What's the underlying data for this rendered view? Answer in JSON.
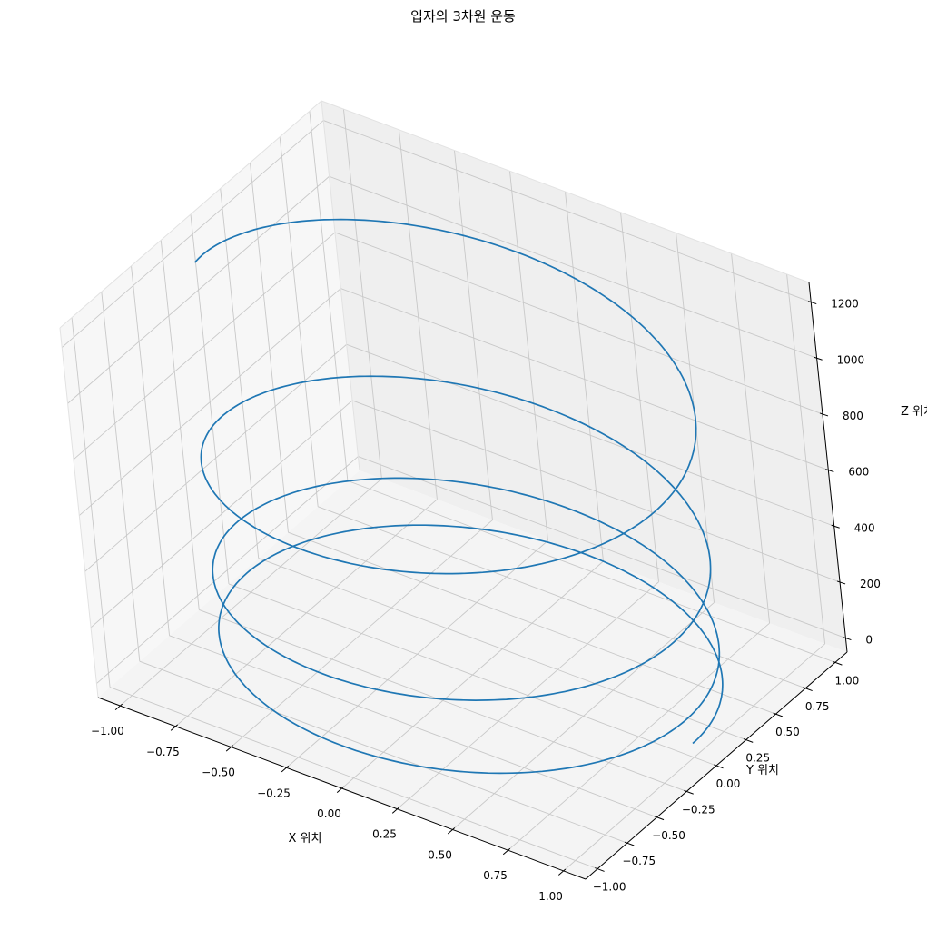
{
  "chart_data": {
    "type": "line",
    "projection": "3d",
    "title": "입자의 3차원 운동",
    "xlabel": "X 위치",
    "ylabel": "Y 위치",
    "zlabel": "Z 위치",
    "xlim": [
      -1.1,
      1.1
    ],
    "ylim": [
      -1.1,
      1.1
    ],
    "zlim": [
      -50,
      1270
    ],
    "xticks": [
      -1.0,
      -0.75,
      -0.5,
      -0.25,
      0.0,
      0.25,
      0.5,
      0.75,
      1.0
    ],
    "xtick_labels": [
      "−1.00",
      "−0.75",
      "−0.50",
      "−0.25",
      "0.00",
      "0.25",
      "0.50",
      "0.75",
      "1.00"
    ],
    "yticks": [
      -1.0,
      -0.75,
      -0.5,
      -0.25,
      0.0,
      0.25,
      0.5,
      0.75,
      1.0
    ],
    "ytick_labels": [
      "−1.00",
      "−0.75",
      "−0.50",
      "−0.25",
      "0.00",
      "0.25",
      "0.50",
      "0.75",
      "1.00"
    ],
    "zticks": [
      0,
      200,
      400,
      600,
      800,
      1000,
      1200
    ],
    "ztick_labels": [
      "0",
      "200",
      "400",
      "600",
      "800",
      "1000",
      "1200"
    ],
    "grid": true,
    "series": [
      {
        "color": "#1f77b4",
        "curve": "helix: x = cos(t), y = sin(t), z = 4.9 * t^2 / 2",
        "t_range": [
          0,
          22.2
        ],
        "z_range": [
          0,
          1210
        ],
        "turns": 3.5
      }
    ]
  }
}
